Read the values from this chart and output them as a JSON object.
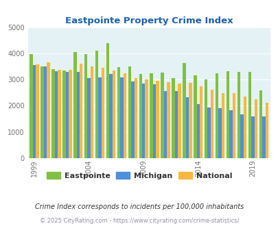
{
  "title": "Eastpointe Property Crime Index",
  "subtitle": "Crime Index corresponds to incidents per 100,000 inhabitants",
  "copyright": "© 2025 CityRating.com - https://www.cityrating.com/crime-statistics/",
  "years": [
    1999,
    2000,
    2001,
    2002,
    2003,
    2004,
    2005,
    2006,
    2007,
    2008,
    2009,
    2010,
    2011,
    2012,
    2013,
    2014,
    2015,
    2016,
    2017,
    2018,
    2019,
    2020
  ],
  "eastpointe": [
    3980,
    3510,
    3390,
    3340,
    4060,
    3960,
    4110,
    4390,
    3470,
    3510,
    3210,
    3230,
    3260,
    3050,
    3620,
    3150,
    3010,
    3250,
    3330,
    3300,
    3290,
    2590
  ],
  "michigan": [
    3560,
    3510,
    3310,
    3290,
    3280,
    3050,
    3090,
    3210,
    3090,
    2920,
    2840,
    2810,
    2560,
    2560,
    2330,
    2060,
    1930,
    1900,
    1840,
    1660,
    1590,
    1590
  ],
  "national": [
    3580,
    3660,
    3380,
    3370,
    3610,
    3510,
    3460,
    3340,
    3230,
    3050,
    3000,
    2960,
    2900,
    2860,
    2870,
    2730,
    2600,
    2490,
    2470,
    2360,
    2240,
    2110
  ],
  "bar_colors": {
    "eastpointe": "#80c040",
    "michigan": "#4f8fdc",
    "national": "#f5b942"
  },
  "ylim": [
    0,
    5000
  ],
  "yticks": [
    0,
    1000,
    2000,
    3000,
    4000,
    5000
  ],
  "xtick_years": [
    1999,
    2004,
    2009,
    2014,
    2019
  ],
  "plot_bg": "#e4f2f5",
  "title_color": "#1a5fb0",
  "subtitle_color": "#333333",
  "copyright_color": "#9090a8",
  "legend_labels": [
    "Eastpointe",
    "Michigan",
    "National"
  ],
  "bar_width": 0.28,
  "figsize": [
    4.06,
    3.3
  ],
  "dpi": 100
}
